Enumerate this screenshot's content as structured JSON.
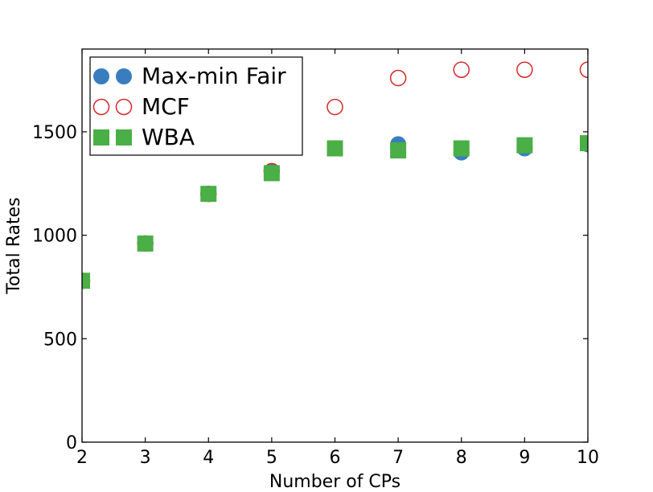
{
  "chart_data": {
    "type": "scatter",
    "title": "",
    "xlabel": "Number of CPs",
    "ylabel": "Total Rates",
    "xlim": [
      2,
      10
    ],
    "ylim": [
      0,
      1900
    ],
    "xticks": [
      2,
      3,
      4,
      5,
      6,
      7,
      8,
      9,
      10
    ],
    "xtick_labels": [
      "2",
      "3",
      "4",
      "5",
      "6",
      "7",
      "8",
      "9",
      "10"
    ],
    "yticks": [
      0,
      500,
      1000,
      1500
    ],
    "ytick_labels": [
      "0",
      "500",
      "1000",
      "1500"
    ],
    "grid": false,
    "legend_position": "top-left",
    "series": [
      {
        "name": "Max-min Fair",
        "marker": "filled-circle",
        "color": "#3a7dbf",
        "x": [
          2,
          3,
          4,
          5,
          6,
          7,
          8,
          9,
          10
        ],
        "y": [
          780,
          960,
          1200,
          1310,
          1420,
          1440,
          1400,
          1420,
          1440
        ]
      },
      {
        "name": "MCF",
        "marker": "open-circle",
        "color": "#d62728",
        "x": [
          2,
          3,
          4,
          5,
          6,
          7,
          8,
          9,
          10
        ],
        "y": [
          780,
          960,
          1200,
          1310,
          1620,
          1760,
          1800,
          1800,
          1800
        ]
      },
      {
        "name": "WBA",
        "marker": "filled-square",
        "color": "#4aaf46",
        "x": [
          2,
          3,
          4,
          5,
          6,
          7,
          8,
          9,
          10
        ],
        "y": [
          780,
          960,
          1200,
          1300,
          1420,
          1410,
          1420,
          1435,
          1445
        ]
      }
    ]
  }
}
